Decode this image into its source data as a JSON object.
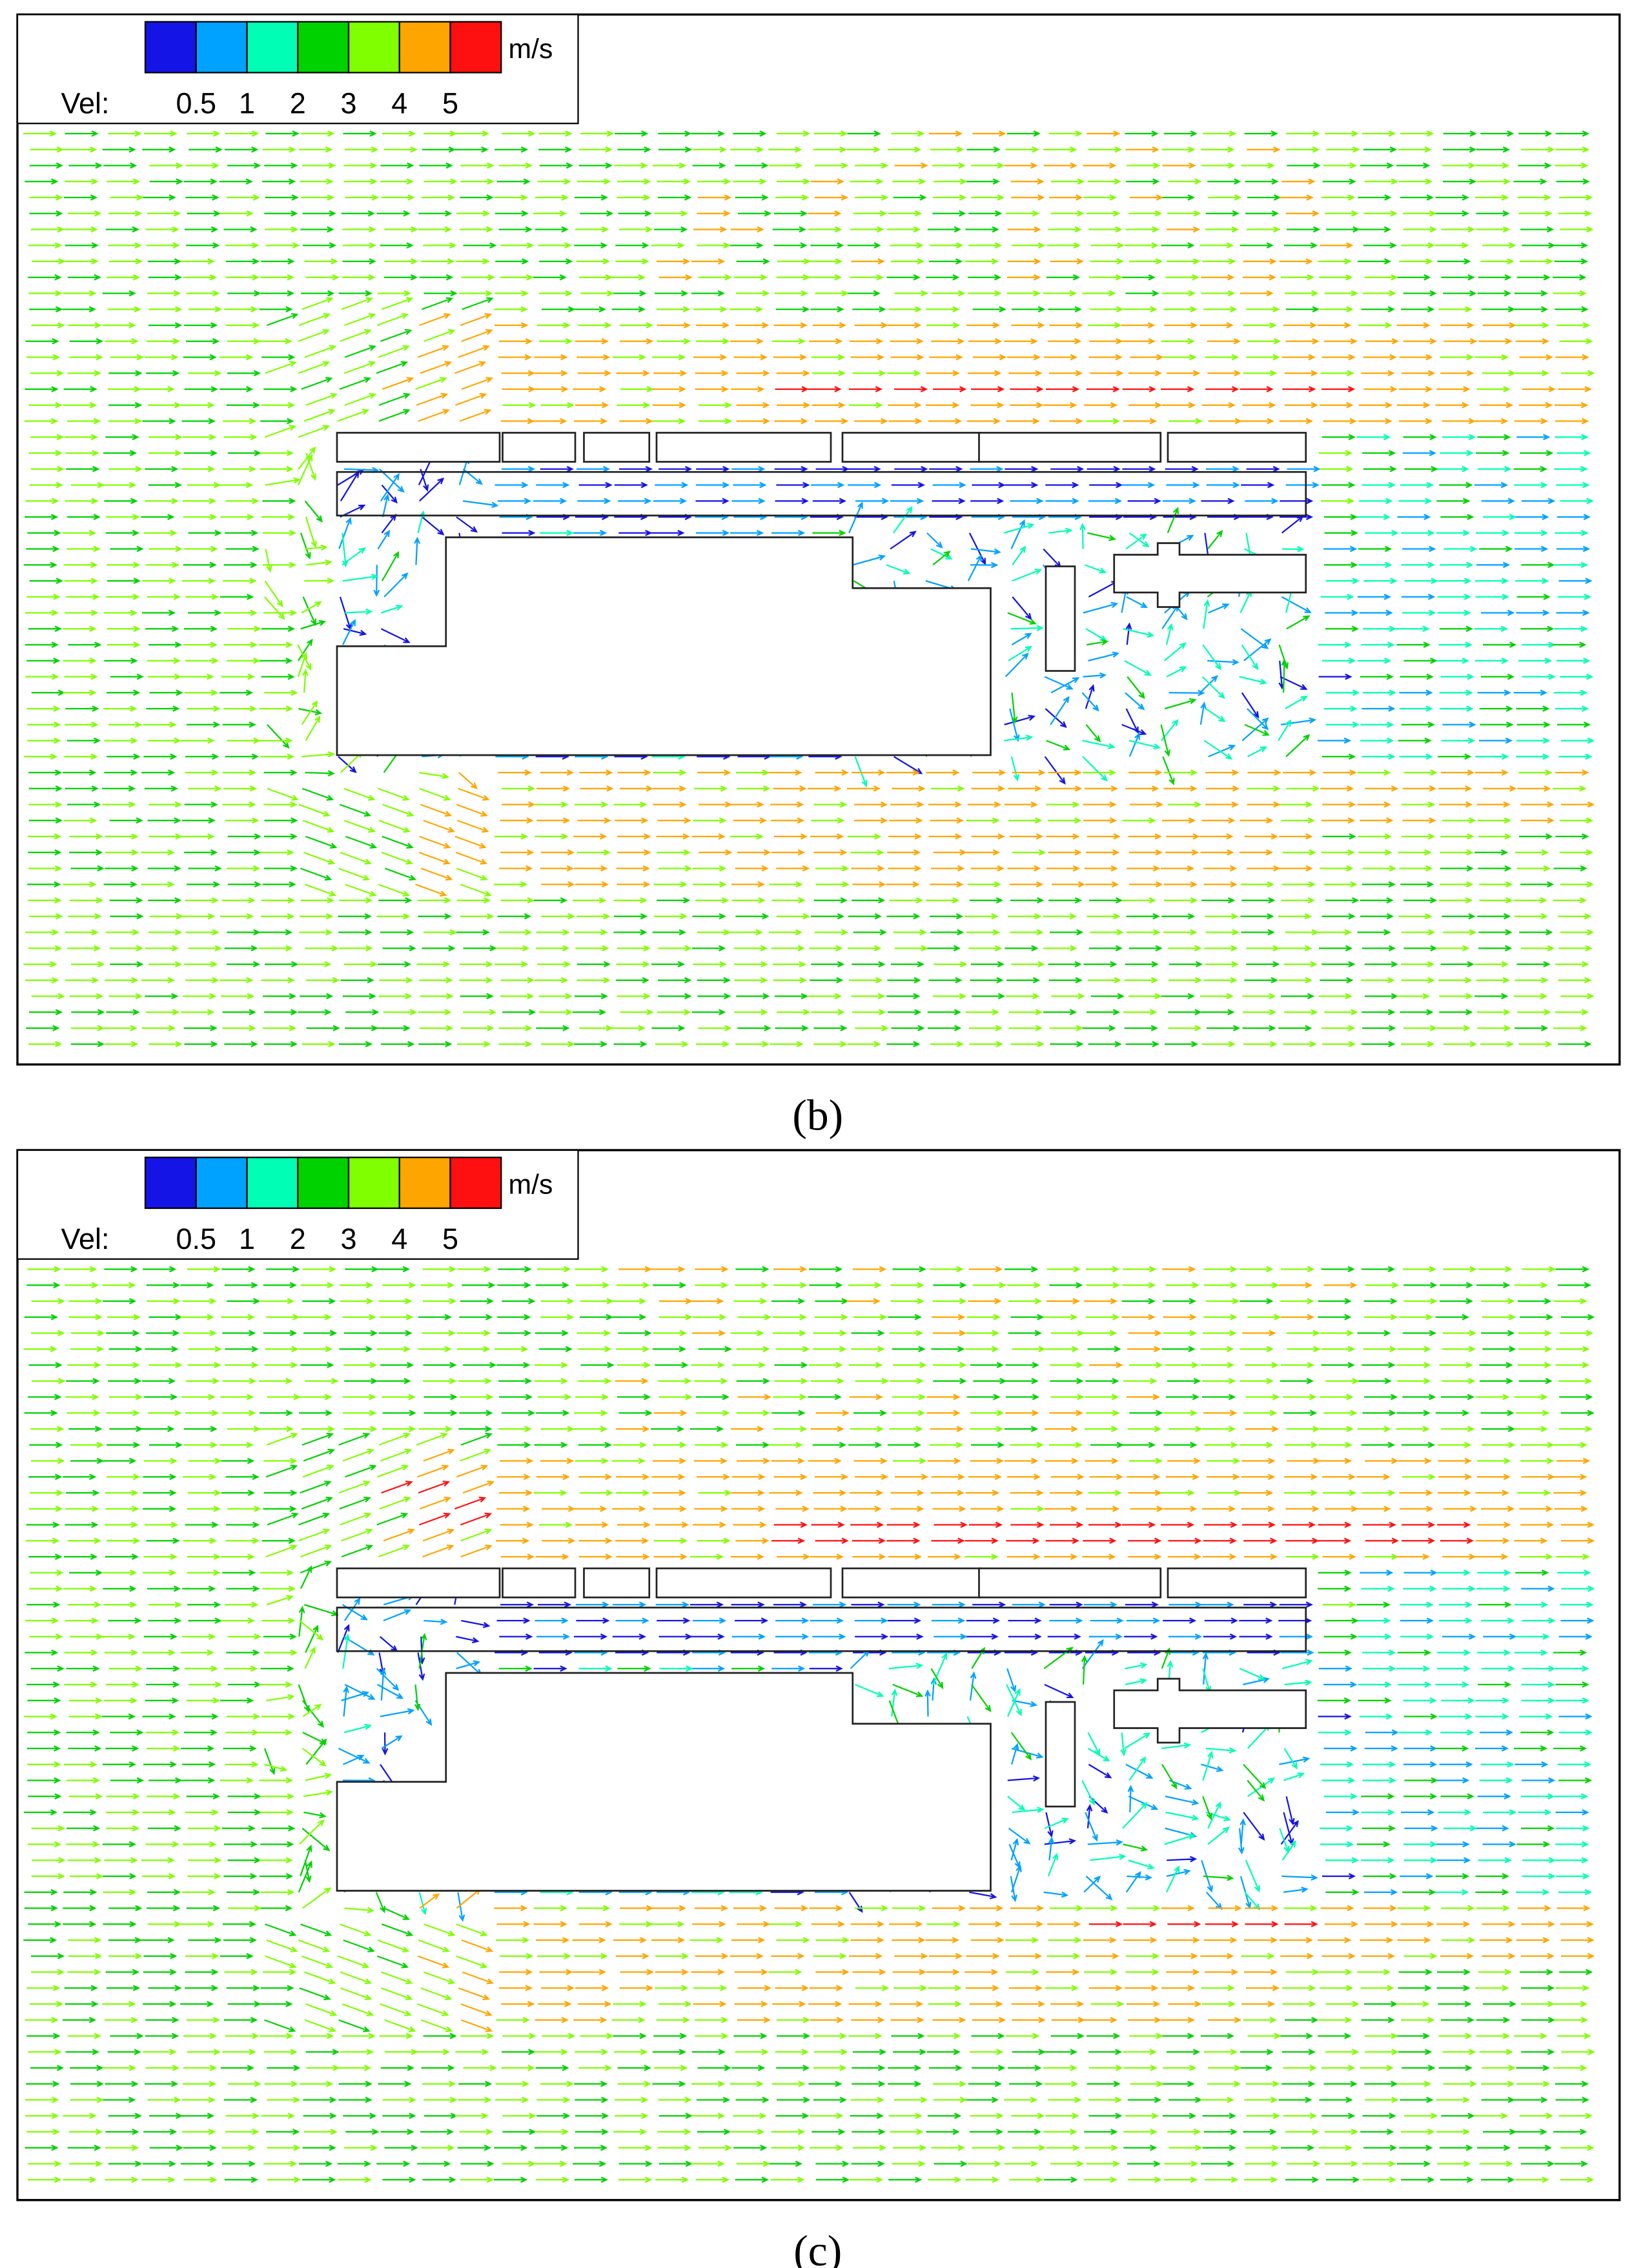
{
  "panels": [
    {
      "caption": "(b)",
      "legend": {
        "label": "Vel:",
        "unit": "m/s",
        "ticks": [
          "0.5",
          "1",
          "2",
          "3",
          "4",
          "5"
        ],
        "colors": [
          "#1414e6",
          "#00a2ff",
          "#00ffb4",
          "#00d200",
          "#7fff00",
          "#ffa500",
          "#ff1010"
        ]
      }
    },
    {
      "caption": "(c)",
      "legend": {
        "label": "Vel:",
        "unit": "m/s",
        "ticks": [
          "0.5",
          "1",
          "2",
          "3",
          "4",
          "5"
        ],
        "colors": [
          "#1414e6",
          "#00a2ff",
          "#00ffb4",
          "#00d200",
          "#7fff00",
          "#ffa500",
          "#ff1010"
        ]
      }
    }
  ]
}
